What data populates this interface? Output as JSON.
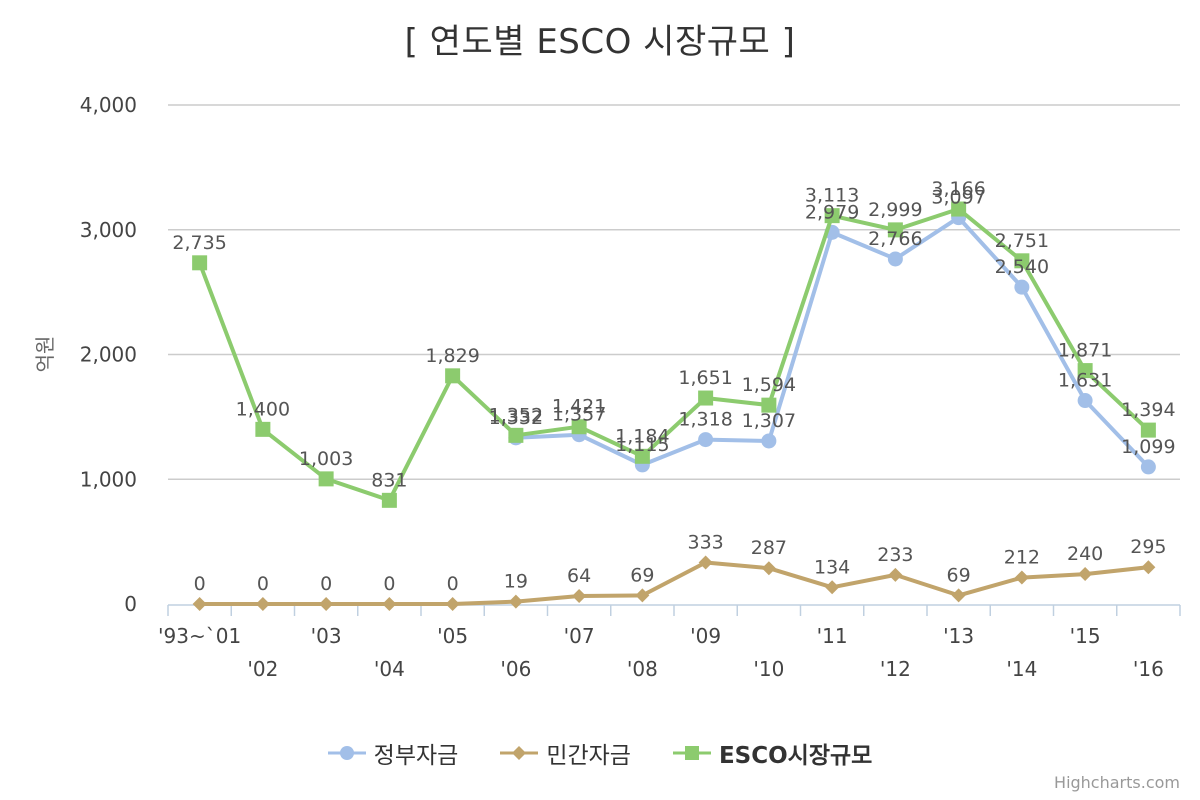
{
  "chart_data": {
    "type": "line",
    "title": "[ 연도별 ESCO 시장규모 ]",
    "ylabel": "억원",
    "ylim": [
      0,
      4000
    ],
    "yticks": [
      0,
      1000,
      2000,
      3000,
      4000
    ],
    "ytick_labels": [
      "0",
      "1,000",
      "2,000",
      "3,000",
      "4,000"
    ],
    "categories": [
      "'93~`01",
      "'02",
      "'03",
      "'04",
      "'05",
      "'06",
      "'07",
      "'08",
      "'09",
      "'10",
      "'11",
      "'12",
      "'13",
      "'14",
      "'15",
      "'16"
    ],
    "grid": true,
    "legend_position": "bottom-center",
    "series": [
      {
        "name": "정부자금",
        "color": "#A2BFE8",
        "marker": "circle",
        "values": [
          null,
          null,
          null,
          null,
          null,
          1332,
          1357,
          1115,
          1318,
          1307,
          2979,
          2766,
          3097,
          2540,
          1631,
          1099
        ],
        "labels": [
          "",
          "",
          "",
          "",
          "",
          "1,332",
          "1,357",
          "1,115",
          "1,318",
          "1,307",
          "2,979",
          "2,766",
          "3,097",
          "2,540",
          "1,631",
          "1,099"
        ]
      },
      {
        "name": "민간자금",
        "color": "#C1A46B",
        "marker": "diamond",
        "values": [
          0,
          0,
          0,
          0,
          0,
          19,
          64,
          69,
          333,
          287,
          134,
          233,
          69,
          212,
          240,
          295
        ],
        "labels": [
          "0",
          "0",
          "0",
          "0",
          "0",
          "19",
          "64",
          "69",
          "333",
          "287",
          "134",
          "233",
          "69",
          "212",
          "240",
          "295"
        ]
      },
      {
        "name": "ESCO시장규모",
        "color": "#8CCB6E",
        "marker": "square",
        "values": [
          2735,
          1400,
          1003,
          831,
          1829,
          1352,
          1421,
          1184,
          1651,
          1594,
          3113,
          2999,
          3166,
          2751,
          1871,
          1394
        ],
        "labels": [
          "2,735",
          "1,400",
          "1,003",
          "831",
          "1,829",
          "1,352",
          "1,421",
          "1,184",
          "1,651",
          "1,594",
          "3,113",
          "2,999",
          "3,166",
          "2,751",
          "1,871",
          "1,394"
        ]
      }
    ]
  },
  "credits": "Highcharts.com"
}
